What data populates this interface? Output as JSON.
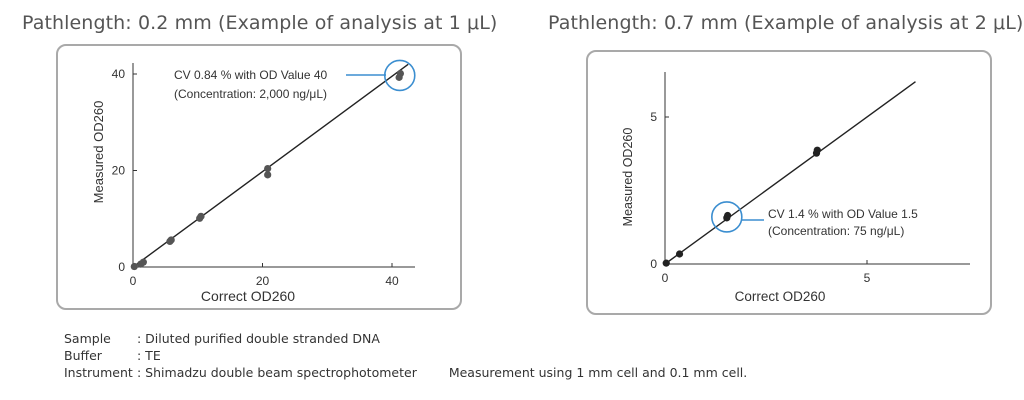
{
  "headings": {
    "left": "Pathlength: 0.2 mm (Example of analysis at 1 μL)",
    "right": "Pathlength: 0.7 mm (Example of analysis at 2 μL)"
  },
  "chart_data": [
    {
      "type": "scatter",
      "title": "Pathlength: 0.2 mm (Example of analysis at 1 μL)",
      "xlabel": "Correct OD260",
      "ylabel": "Measured OD260",
      "xlim": [
        0,
        43
      ],
      "ylim": [
        0,
        42
      ],
      "xticks": [
        0,
        20,
        40
      ],
      "yticks": [
        0,
        20,
        40
      ],
      "fit_line": [
        [
          0,
          0
        ],
        [
          42.5,
          42
        ]
      ],
      "points": [
        {
          "x": 0.2,
          "y": 0.1
        },
        {
          "x": 1.2,
          "y": 0.6
        },
        {
          "x": 1.6,
          "y": 1.0
        },
        {
          "x": 5.7,
          "y": 5.3
        },
        {
          "x": 5.9,
          "y": 5.6
        },
        {
          "x": 10.3,
          "y": 10.1
        },
        {
          "x": 10.5,
          "y": 10.5
        },
        {
          "x": 20.8,
          "y": 19.1
        },
        {
          "x": 20.8,
          "y": 20.4
        },
        {
          "x": 41.1,
          "y": 39.3
        },
        {
          "x": 41.3,
          "y": 40.1
        }
      ],
      "highlight": {
        "x": 41.2,
        "y": 39.7
      },
      "annotation": {
        "line1": "CV 0.84 % with OD Value 40",
        "line2": "(Concentration: 2,000 ng/μL)"
      },
      "grid": false,
      "colors": {
        "points": "#555555",
        "line": "#222222",
        "highlight": "#3b8ed0"
      }
    },
    {
      "type": "scatter",
      "title": "Pathlength: 0.7 mm (Example of analysis at 2 μL)",
      "xlabel": "Correct OD260",
      "ylabel": "Measured OD260",
      "xlim": [
        0,
        6.6
      ],
      "ylim": [
        0,
        6.5
      ],
      "xticks": [
        0,
        5
      ],
      "yticks": [
        0,
        5
      ],
      "fit_line": [
        [
          0,
          0
        ],
        [
          6.2,
          6.2
        ]
      ],
      "points": [
        {
          "x": 0.03,
          "y": 0.03
        },
        {
          "x": 0.36,
          "y": 0.34
        },
        {
          "x": 1.53,
          "y": 1.57
        },
        {
          "x": 1.55,
          "y": 1.65
        },
        {
          "x": 3.75,
          "y": 3.77
        },
        {
          "x": 3.77,
          "y": 3.87
        }
      ],
      "highlight": {
        "x": 1.53,
        "y": 1.6
      },
      "annotation": {
        "line1": "CV 1.4 % with OD Value 1.5",
        "line2": "(Concentration: 75 ng/μL)"
      },
      "grid": false,
      "colors": {
        "points": "#222222",
        "line": "#222222",
        "highlight": "#3b8ed0"
      }
    }
  ],
  "footer": {
    "sample_label": "Sample",
    "sample_value": ": Diluted purified double stranded DNA",
    "buffer_label": "Buffer",
    "buffer_value": ": TE",
    "instrument_label": "Instrument",
    "instrument_value": ": Shimadzu double beam spectrophotometer",
    "measurement_note": "Measurement using 1 mm cell and 0.1 mm cell."
  }
}
